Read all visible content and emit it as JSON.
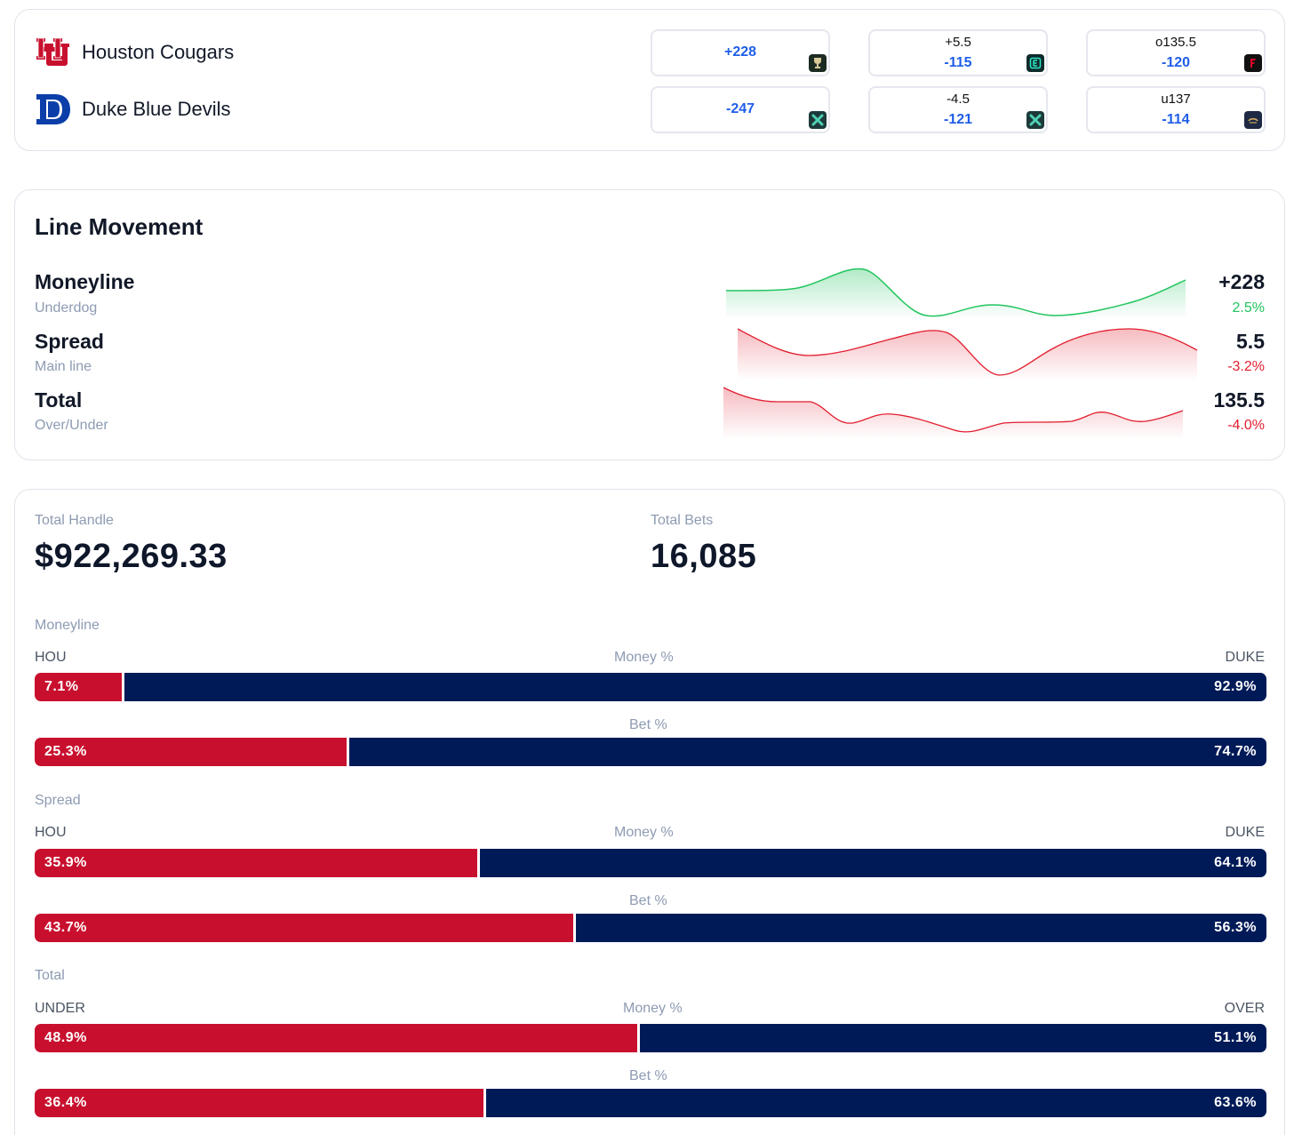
{
  "teams": [
    {
      "name": "Houston Cougars",
      "logo": "houston-uh-logo"
    },
    {
      "name": "Duke Blue Devils",
      "logo": "duke-d-logo"
    }
  ],
  "odds": {
    "moneyline": [
      {
        "price": "+228",
        "book": "trophy-book-icon"
      },
      {
        "price": "-247",
        "book": "x-book-icon"
      }
    ],
    "spread": [
      {
        "line": "+5.5",
        "price": "-115",
        "book": "e-book-icon"
      },
      {
        "line": "-4.5",
        "price": "-121",
        "book": "x-book-icon"
      }
    ],
    "total": [
      {
        "line": "o135.5",
        "price": "-120",
        "book": "fanatics-book-icon"
      },
      {
        "line": "u137",
        "price": "-114",
        "book": "caesars-book-icon"
      }
    ]
  },
  "movement": {
    "title": "Line Movement",
    "rows": [
      {
        "label": "Moneyline",
        "sub": "Underdog",
        "value": "+228",
        "pct": "2.5%",
        "trend": "up",
        "color": "#22c55e"
      },
      {
        "label": "Spread",
        "sub": "Main line",
        "value": "5.5",
        "pct": "-3.2%",
        "trend": "down",
        "color": "#e11d2e"
      },
      {
        "label": "Total",
        "sub": "Over/Under",
        "value": "135.5",
        "pct": "-4.0%",
        "trend": "down",
        "color": "#e11d2e"
      }
    ]
  },
  "handle": {
    "total_handle_label": "Total Handle",
    "total_handle": "$922,269.33",
    "total_bets_label": "Total Bets",
    "total_bets": "16,085"
  },
  "splits": [
    {
      "label": "Moneyline",
      "left": "HOU",
      "right": "DUKE",
      "money_label": "Money %",
      "bet_label": "Bet %",
      "money": {
        "left": 7.1,
        "right": 92.9,
        "left_text": "7.1%",
        "right_text": "92.9%"
      },
      "bets": {
        "left": 25.3,
        "right": 74.7,
        "left_text": "25.3%",
        "right_text": "74.7%"
      }
    },
    {
      "label": "Spread",
      "left": "HOU",
      "right": "DUKE",
      "money_label": "Money %",
      "bet_label": "Bet %",
      "money": {
        "left": 35.9,
        "right": 64.1,
        "left_text": "35.9%",
        "right_text": "64.1%"
      },
      "bets": {
        "left": 43.7,
        "right": 56.3,
        "left_text": "43.7%",
        "right_text": "56.3%"
      }
    },
    {
      "label": "Total",
      "left": "UNDER",
      "right": "OVER",
      "money_label": "Money %",
      "bet_label": "Bet %",
      "money": {
        "left": 48.9,
        "right": 51.1,
        "left_text": "48.9%",
        "right_text": "51.1%"
      },
      "bets": {
        "left": 36.4,
        "right": 63.6,
        "left_text": "36.4%",
        "right_text": "63.6%"
      }
    }
  ],
  "colors": {
    "home_red": "#c8102e",
    "away_navy": "#001a57",
    "price_blue": "#1f5ee8",
    "up_green": "#22c55e",
    "down_red": "#e11d2e"
  }
}
